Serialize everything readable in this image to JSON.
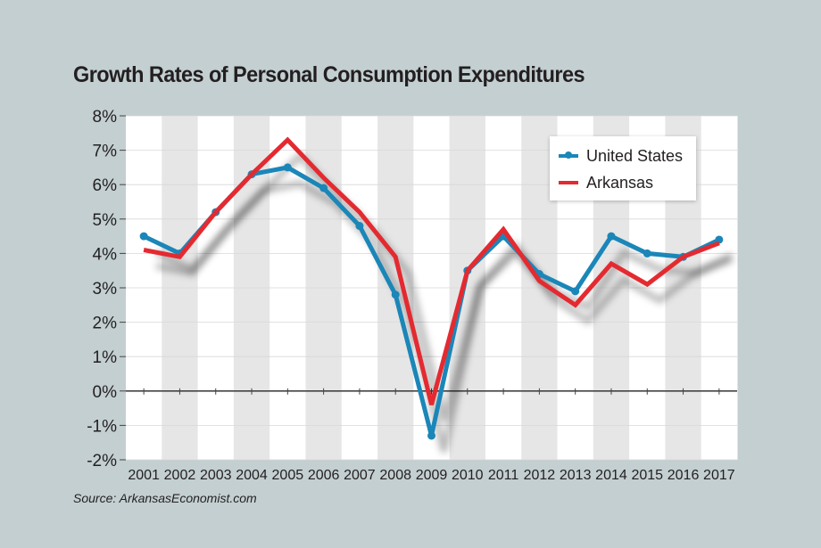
{
  "chart_data": {
    "type": "line",
    "title": "Growth Rates of Personal Consumption Expenditures",
    "source": "Source: ArkansasEconomist.com",
    "xlabel": "",
    "ylabel": "",
    "categories": [
      "2001",
      "2002",
      "2003",
      "2004",
      "2005",
      "2006",
      "2007",
      "2008",
      "2009",
      "2010",
      "2011",
      "2012",
      "2013",
      "2014",
      "2015",
      "2016",
      "2017"
    ],
    "ylim": [
      -2,
      8
    ],
    "yticks": [
      8,
      7,
      6,
      5,
      4,
      3,
      2,
      1,
      0,
      -1,
      -2
    ],
    "ytick_labels": [
      "8%",
      "7%",
      "6%",
      "5%",
      "4%",
      "3%",
      "2%",
      "1%",
      "0%",
      "-1%",
      "-2%"
    ],
    "grid": true,
    "legend_position": "top-right",
    "series": [
      {
        "name": "United States",
        "color": "#1b86b8",
        "markers": true,
        "values": [
          4.5,
          4.0,
          5.2,
          6.3,
          6.5,
          5.9,
          4.8,
          2.8,
          -1.3,
          3.5,
          4.5,
          3.4,
          2.9,
          4.5,
          4.0,
          3.9,
          4.4
        ]
      },
      {
        "name": "Arkansas",
        "color": "#e42a30",
        "markers": false,
        "values": [
          4.1,
          3.9,
          5.2,
          6.3,
          7.3,
          6.2,
          5.2,
          3.9,
          -0.4,
          3.5,
          4.7,
          3.2,
          2.5,
          3.7,
          3.1,
          3.9,
          4.3
        ]
      }
    ]
  }
}
